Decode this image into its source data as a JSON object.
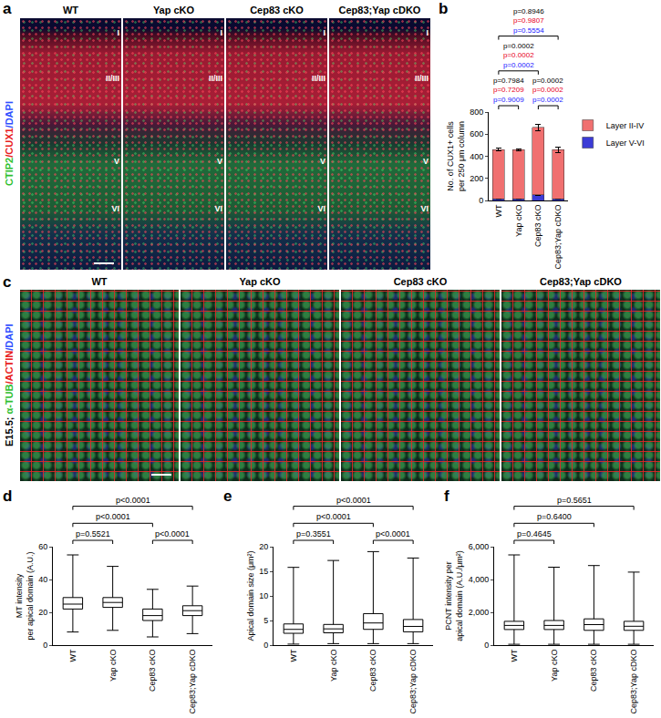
{
  "image_panels": [
    {
      "label": "a",
      "channels": "CTIP2/CUX1/DAPI",
      "columns": [
        "WT",
        "Yap cKO",
        "Cep83 cKO",
        "Cep83;Yap cDKO"
      ],
      "layers": [
        "I",
        "II/III",
        "V",
        "VI"
      ]
    },
    {
      "label": "c",
      "stage": "E15.5;",
      "channels": "α-TUB/ACTIN/DAPI",
      "columns": [
        "WT",
        "Yap cKO",
        "Cep83 cKO",
        "Cep83;Yap cDKO"
      ]
    }
  ],
  "chart_data": [
    {
      "panel": "b",
      "type": "bar",
      "stacked": true,
      "categories": [
        "WT",
        "Yap cKO",
        "Cep83 cKO",
        "Cep83;Yap cDKO"
      ],
      "series": [
        {
          "name": "Layer V-VI",
          "color": "#3b3bd6",
          "values": [
            15,
            14,
            50,
            15
          ],
          "errors": [
            3,
            3,
            8,
            3
          ]
        },
        {
          "name": "Layer II-IV",
          "color": "#f07070",
          "values": [
            445,
            446,
            610,
            445
          ],
          "errors": [
            12,
            10,
            25,
            25
          ]
        }
      ],
      "y_label": [
        "No. of CUX1+ cells",
        "per 250 μm column"
      ],
      "ylim": [
        0,
        800
      ],
      "yticks": [
        0,
        200,
        400,
        600,
        800
      ],
      "legend": "right",
      "grid": false,
      "comparisons": [
        {
          "from": 0,
          "to": 1,
          "p": [
            "p=0.7984",
            "p=0.7209",
            "p=0.9009"
          ]
        },
        {
          "from": 2,
          "to": 3,
          "p": [
            "p=0.0002",
            "p=0.0002",
            "p=0.0002"
          ]
        },
        {
          "from": 0,
          "to": 2,
          "p": [
            "p=0.0002",
            "p=0.0002",
            "p=0.0002"
          ]
        },
        {
          "from": 0,
          "to": 3,
          "p": [
            "p=0.8946",
            "p=0.9807",
            "p=0.5554"
          ]
        }
      ]
    },
    {
      "panel": "d",
      "type": "box",
      "categories": [
        "WT",
        "Yap cKO",
        "Cep83 cKO",
        "Cep83;Yap cDKO"
      ],
      "boxes": {
        "min": [
          8,
          9,
          5,
          7
        ],
        "q1": [
          22,
          23,
          15,
          18
        ],
        "median": [
          25,
          26,
          18,
          21
        ],
        "q3": [
          29,
          29,
          22,
          24
        ],
        "max": [
          55,
          48,
          34,
          36
        ]
      },
      "y_label": [
        "MT intensity",
        "per apical domain (A.U.)"
      ],
      "ylim": [
        0,
        60
      ],
      "yticks": [
        0,
        20,
        40,
        60
      ],
      "grid": false,
      "comparisons": [
        {
          "from": 0,
          "to": 1,
          "p": [
            "p=0.5521"
          ]
        },
        {
          "from": 2,
          "to": 3,
          "p": [
            "p<0.0001"
          ]
        },
        {
          "from": 0,
          "to": 2,
          "p": [
            "p<0.0001"
          ]
        },
        {
          "from": 0,
          "to": 3,
          "p": [
            "p<0.0001"
          ]
        }
      ]
    },
    {
      "panel": "e",
      "type": "box",
      "categories": [
        "WT",
        "Yap cKO",
        "Cep83 cKO",
        "Cep83;Yap cDKO"
      ],
      "boxes": {
        "min": [
          0.2,
          0.3,
          0.3,
          0.3
        ],
        "q1": [
          2.4,
          2.5,
          3.2,
          2.7
        ],
        "median": [
          3.2,
          3.3,
          4.5,
          3.8
        ],
        "q3": [
          4.3,
          4.2,
          6.4,
          5.2
        ],
        "max": [
          15.8,
          17.2,
          19,
          17.7
        ]
      },
      "y_label": [
        "Apical domain size (μm²)"
      ],
      "ylim": [
        0,
        20
      ],
      "yticks": [
        0,
        5,
        10,
        15,
        20
      ],
      "grid": false,
      "comparisons": [
        {
          "from": 0,
          "to": 1,
          "p": [
            "p=0.3551"
          ]
        },
        {
          "from": 2,
          "to": 3,
          "p": [
            "p<0.0001"
          ]
        },
        {
          "from": 0,
          "to": 2,
          "p": [
            "p<0.0001"
          ]
        },
        {
          "from": 0,
          "to": 3,
          "p": [
            "p<0.0001"
          ]
        }
      ]
    },
    {
      "panel": "f",
      "type": "box",
      "categories": [
        "WT",
        "Yap cKO",
        "Cep83 cKO",
        "Cep83;Yap cDKO"
      ],
      "boxes": {
        "min": [
          50,
          50,
          50,
          50
        ],
        "q1": [
          950,
          950,
          900,
          900
        ],
        "median": [
          1200,
          1200,
          1250,
          1150
        ],
        "q3": [
          1450,
          1500,
          1600,
          1450
        ],
        "max": [
          5500,
          4750,
          4850,
          4450
        ]
      },
      "y_label": [
        "PCNT intensity per",
        "apical domain (A.U./μm²)"
      ],
      "ylim": [
        0,
        6000
      ],
      "yticks": [
        0,
        {
          "value": 2000,
          "label": "2,000"
        },
        {
          "value": 4000,
          "label": "4,000"
        },
        {
          "value": 6000,
          "label": "6,000"
        }
      ],
      "grid": false,
      "comparisons": [
        {
          "from": 0,
          "to": 1,
          "p": [
            "p=0.4645"
          ]
        },
        {
          "from": 0,
          "to": 2,
          "p": [
            "p=0.6400"
          ]
        },
        {
          "from": 0,
          "to": 3,
          "p": [
            "p=0.5651"
          ]
        }
      ]
    }
  ]
}
